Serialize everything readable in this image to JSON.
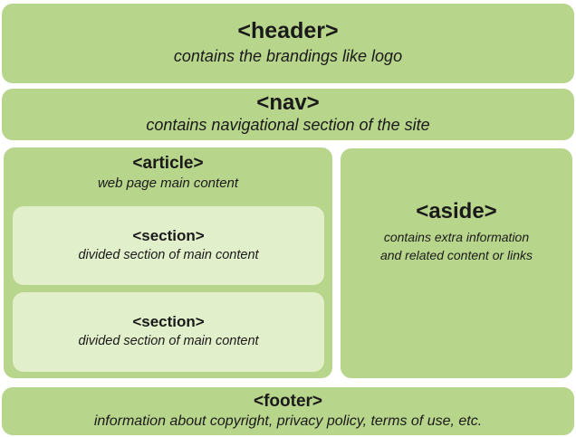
{
  "header": {
    "tag": "<header>",
    "description": "contains the brandings like logo"
  },
  "nav": {
    "tag": "<nav>",
    "description": "contains navigational section of the site"
  },
  "article": {
    "tag": "<article>",
    "description": "web page main content",
    "sections": [
      {
        "tag": "<section>",
        "description": "divided section of main content"
      },
      {
        "tag": "<section>",
        "description": "divided section of main content"
      }
    ]
  },
  "aside": {
    "tag": "<aside>",
    "description_lines": [
      "contains extra information",
      "and related content or links"
    ]
  },
  "footer": {
    "tag": "<footer>",
    "description": "information about copyright, privacy policy, terms of use, etc."
  },
  "colors": {
    "block": "#b8d58c",
    "inner_block": "#e2efcb",
    "text": "#1a1a1a"
  }
}
